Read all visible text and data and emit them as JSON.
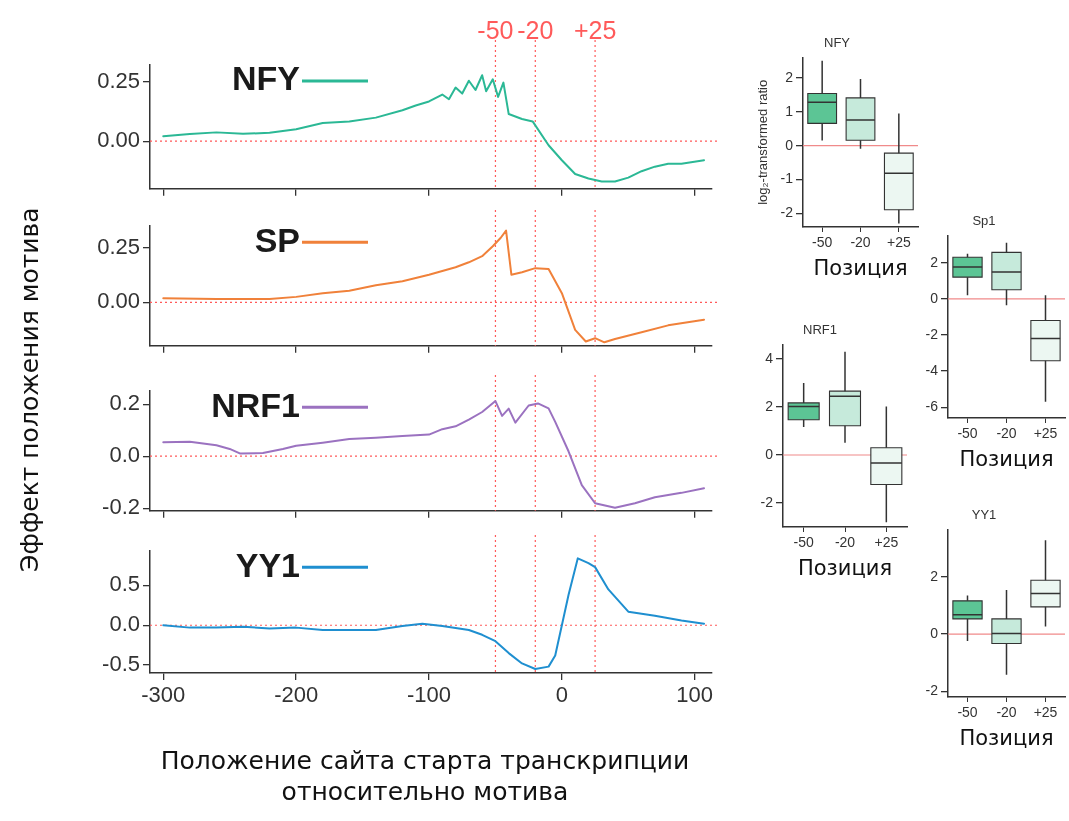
{
  "chart_data": [
    {
      "type": "line",
      "legend": "top left",
      "tick_labels": "y",
      "ylabel": "Эффект положения мотива",
      "xlim": [
        -310,
        113
      ],
      "xticks": [
        -300,
        -200,
        -100,
        0,
        100
      ],
      "ylim": [
        -0.2,
        0.32
      ],
      "yticks": [
        {
          "value": 0,
          "label": "0.00"
        },
        {
          "value": 0.25,
          "label": "0.25"
        }
      ],
      "ref_lines": [
        {
          "axis": "x",
          "value": -50,
          "label": "-50",
          "color": "#ff5a5a",
          "line_style": "dotted"
        },
        {
          "axis": "x",
          "value": -20,
          "label": "-20",
          "color": "#ff5a5a",
          "line_style": "dotted"
        },
        {
          "axis": "x",
          "value": 25,
          "label": "+25",
          "color": "#ff5a5a",
          "line_style": "dotted"
        },
        {
          "axis": "y",
          "value": 0,
          "color": "#ff5a5a",
          "line_style": "dotted"
        }
      ],
      "series": [
        {
          "name": "NFY",
          "color": "#2bb895",
          "x": [
            -300,
            -280,
            -260,
            -240,
            -220,
            -200,
            -180,
            -160,
            -140,
            -120,
            -110,
            -100,
            -90,
            -85,
            -80,
            -75,
            -70,
            -65,
            -60,
            -57,
            -52,
            -48,
            -44,
            -40,
            -30,
            -22,
            -10,
            0,
            10,
            20,
            30,
            40,
            50,
            60,
            70,
            80,
            90,
            107
          ],
          "values": [
            0.021,
            0.03,
            0.037,
            0.031,
            0.035,
            0.05,
            0.076,
            0.083,
            0.099,
            0.13,
            0.15,
            0.167,
            0.196,
            0.176,
            0.225,
            0.2,
            0.254,
            0.215,
            0.277,
            0.21,
            0.26,
            0.186,
            0.246,
            0.114,
            0.093,
            0.083,
            -0.017,
            -0.08,
            -0.138,
            -0.157,
            -0.169,
            -0.169,
            -0.153,
            -0.126,
            -0.107,
            -0.095,
            -0.095,
            -0.08
          ]
        }
      ]
    },
    {
      "type": "line",
      "legend": "top left",
      "tick_labels": "y",
      "xlim": [
        -310,
        113
      ],
      "xticks": [
        -300,
        -200,
        -100,
        0,
        100
      ],
      "ylim": [
        -0.2,
        0.35
      ],
      "yticks": [
        {
          "value": 0,
          "label": "0.00"
        },
        {
          "value": 0.25,
          "label": "0.25"
        }
      ],
      "ref_lines": [
        {
          "axis": "x",
          "value": -50,
          "color": "#ff5a5a",
          "line_style": "dotted"
        },
        {
          "axis": "x",
          "value": -20,
          "color": "#ff5a5a",
          "line_style": "dotted"
        },
        {
          "axis": "x",
          "value": 25,
          "color": "#ff5a5a",
          "line_style": "dotted"
        },
        {
          "axis": "y",
          "value": 0,
          "color": "#ff5a5a",
          "line_style": "dotted"
        }
      ],
      "series": [
        {
          "name": "SP",
          "color": "#f0813a",
          "x": [
            -300,
            -260,
            -220,
            -200,
            -180,
            -160,
            -140,
            -120,
            -100,
            -80,
            -70,
            -60,
            -52,
            -46,
            -42,
            -38,
            -30,
            -20,
            -10,
            0,
            10,
            18,
            25,
            32,
            40,
            60,
            80,
            107
          ],
          "values": [
            0.019,
            0.015,
            0.015,
            0.025,
            0.042,
            0.053,
            0.078,
            0.097,
            0.127,
            0.161,
            0.184,
            0.212,
            0.258,
            0.297,
            0.33,
            0.127,
            0.138,
            0.157,
            0.153,
            0.042,
            -0.127,
            -0.18,
            -0.165,
            -0.184,
            -0.169,
            -0.138,
            -0.106,
            -0.08
          ]
        }
      ]
    },
    {
      "type": "line",
      "legend": "top left",
      "tick_labels": "y",
      "xlim": [
        -310,
        113
      ],
      "xticks": [
        -300,
        -200,
        -100,
        0,
        100
      ],
      "ylim": [
        -0.21,
        0.25
      ],
      "yticks": [
        {
          "value": -0.2,
          "label": "-0.2"
        },
        {
          "value": 0,
          "label": "0.0"
        },
        {
          "value": 0.2,
          "label": "0.2"
        }
      ],
      "ref_lines": [
        {
          "axis": "x",
          "value": -50,
          "color": "#ff5a5a",
          "line_style": "dotted"
        },
        {
          "axis": "x",
          "value": -20,
          "color": "#ff5a5a",
          "line_style": "dotted"
        },
        {
          "axis": "x",
          "value": 25,
          "color": "#ff5a5a",
          "line_style": "dotted"
        },
        {
          "axis": "y",
          "value": 0,
          "color": "#ff5a5a",
          "line_style": "dotted"
        }
      ],
      "series": [
        {
          "name": "NRF1",
          "color": "#9b72c0",
          "x": [
            -300,
            -280,
            -260,
            -250,
            -242,
            -225,
            -210,
            -200,
            -180,
            -160,
            -140,
            -120,
            -100,
            -90,
            -80,
            -70,
            -60,
            -50,
            -45,
            -40,
            -35,
            -25,
            -18,
            -10,
            -5,
            5,
            15,
            25,
            40,
            55,
            70,
            90,
            107
          ],
          "values": [
            0.054,
            0.056,
            0.042,
            0.028,
            0.01,
            0.012,
            0.028,
            0.04,
            0.052,
            0.066,
            0.071,
            0.078,
            0.083,
            0.104,
            0.115,
            0.141,
            0.17,
            0.212,
            0.155,
            0.183,
            0.129,
            0.195,
            0.203,
            0.184,
            0.132,
            0.019,
            -0.111,
            -0.181,
            -0.198,
            -0.181,
            -0.158,
            -0.141,
            -0.123
          ]
        }
      ]
    },
    {
      "type": "line",
      "legend": "top left",
      "xlabel": "Положение сайта старта транскрипции относительно мотива",
      "xlim": [
        -310,
        113
      ],
      "xticks": [
        -300,
        -200,
        -100,
        0,
        100
      ],
      "ylim": [
        -0.6,
        0.93
      ],
      "yticks": [
        {
          "value": -0.5,
          "label": "-0.5"
        },
        {
          "value": 0,
          "label": "0.0"
        },
        {
          "value": 0.5,
          "label": "0.5"
        }
      ],
      "ref_lines": [
        {
          "axis": "x",
          "value": -50,
          "color": "#ff5a5a",
          "line_style": "dotted"
        },
        {
          "axis": "x",
          "value": -20,
          "color": "#ff5a5a",
          "line_style": "dotted"
        },
        {
          "axis": "x",
          "value": 25,
          "color": "#ff5a5a",
          "line_style": "dotted"
        },
        {
          "axis": "y",
          "value": 0,
          "color": "#ff5a5a",
          "line_style": "dotted"
        }
      ],
      "series": [
        {
          "name": "YY1",
          "color": "#1f8fd0",
          "x": [
            -300,
            -280,
            -260,
            -240,
            -220,
            -200,
            -180,
            -160,
            -140,
            -120,
            -105,
            -90,
            -70,
            -60,
            -50,
            -40,
            -30,
            -20,
            -10,
            -5,
            0,
            5,
            12,
            20,
            25,
            35,
            50,
            70,
            90,
            107
          ],
          "values": [
            0,
            -0.03,
            -0.03,
            -0.02,
            -0.04,
            -0.03,
            -0.06,
            -0.06,
            -0.06,
            -0.01,
            0.02,
            -0.01,
            -0.06,
            -0.12,
            -0.2,
            -0.35,
            -0.48,
            -0.55,
            -0.52,
            -0.38,
            0,
            0.38,
            0.84,
            0.78,
            0.73,
            0.45,
            0.17,
            0.12,
            0.06,
            0.02
          ]
        }
      ]
    },
    {
      "type": "box",
      "title": "NFY",
      "xlabel": "Позиция",
      "ylabel": "log₂-transformed ratio",
      "categories": [
        "-50",
        "-20",
        "+25"
      ],
      "colors": [
        "#5cc595",
        "#c6eadb",
        "#ecf7f2"
      ],
      "ylim": [
        -2.4,
        2.6
      ],
      "yticks": [
        {
          "value": -2,
          "label": "-2"
        },
        {
          "value": -1,
          "label": "-1"
        },
        0,
        1,
        2
      ],
      "ref_lines": [
        {
          "axis": "y",
          "value": 0,
          "color": "#f08a8a"
        }
      ],
      "boxes": [
        {
          "low": 0.15,
          "q1": 0.66,
          "median": 1.28,
          "q3": 1.54,
          "high": 2.51
        },
        {
          "low": -0.09,
          "q1": 0.16,
          "median": 0.76,
          "q3": 1.41,
          "high": 1.97
        },
        {
          "low": -2.3,
          "q1": -1.89,
          "median": -0.81,
          "q3": -0.22,
          "high": 0.95
        }
      ]
    },
    {
      "type": "box",
      "title": "Sp1",
      "xlabel": "Позиция",
      "categories": [
        "-50",
        "-20",
        "+25"
      ],
      "colors": [
        "#5cc595",
        "#c6eadb",
        "#ecf7f2"
      ],
      "ylim": [
        -6.6,
        3.5
      ],
      "yticks": [
        -6,
        -4,
        -2,
        0,
        2
      ],
      "ref_lines": [
        {
          "axis": "y",
          "value": 0,
          "color": "#f08a8a"
        }
      ],
      "boxes": [
        {
          "low": 0.2,
          "q1": 1.2,
          "median": 1.76,
          "q3": 2.3,
          "high": 2.5
        },
        {
          "low": -0.36,
          "q1": 0.5,
          "median": 1.48,
          "q3": 2.57,
          "high": 3.1
        },
        {
          "low": -5.7,
          "q1": -3.43,
          "median": -2.2,
          "q3": -1.2,
          "high": 0.2
        }
      ]
    },
    {
      "type": "box",
      "title": "NRF1",
      "xlabel": "Позиция",
      "categories": [
        "-50",
        "-20",
        "+25"
      ],
      "colors": [
        "#5cc595",
        "#c6eadb",
        "#ecf7f2"
      ],
      "ylim": [
        -3,
        4.6
      ],
      "yticks": [
        -2,
        0,
        2,
        4
      ],
      "ref_lines": [
        {
          "axis": "y",
          "value": 0,
          "color": "#f08a8a"
        }
      ],
      "boxes": [
        {
          "low": 1.17,
          "q1": 1.47,
          "median": 2.02,
          "q3": 2.17,
          "high": 3.0
        },
        {
          "low": 0.51,
          "q1": 1.22,
          "median": 2.45,
          "q3": 2.66,
          "high": 4.3
        },
        {
          "low": -2.8,
          "q1": -1.23,
          "median": -0.33,
          "q3": 0.3,
          "high": 2.02
        }
      ]
    },
    {
      "type": "box",
      "title": "YY1",
      "xlabel": "Позиция",
      "categories": [
        "-50",
        "-20",
        "+25"
      ],
      "colors": [
        "#5cc595",
        "#c6eadb",
        "#ecf7f2"
      ],
      "ylim": [
        -2.2,
        3.65
      ],
      "yticks": [
        -2,
        0,
        2
      ],
      "ref_lines": [
        {
          "axis": "y",
          "value": 0,
          "color": "#f08a8a"
        }
      ],
      "boxes": [
        {
          "low": -0.24,
          "q1": 0.53,
          "median": 0.67,
          "q3": 1.16,
          "high": 1.35
        },
        {
          "low": -1.42,
          "q1": -0.33,
          "median": 0.02,
          "q3": 0.53,
          "high": 1.54
        },
        {
          "low": 0.26,
          "q1": 0.95,
          "median": 1.42,
          "q3": 1.88,
          "high": 3.28
        }
      ]
    }
  ]
}
